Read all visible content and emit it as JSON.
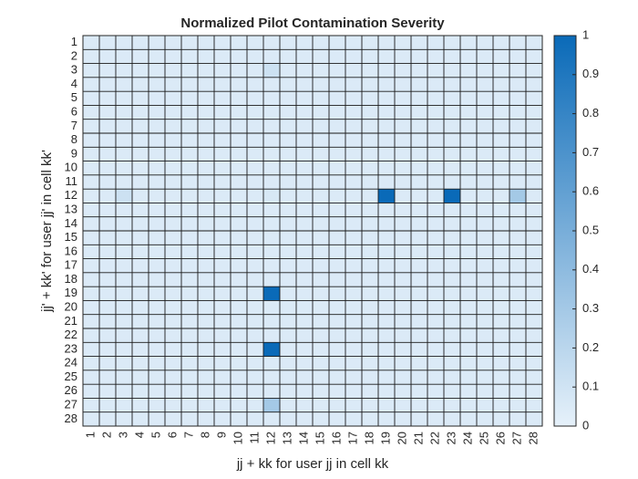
{
  "chart_data": {
    "type": "heatmap",
    "title": "Normalized Pilot Contamination Severity",
    "xlabel": "jj + kk for user jj in cell kk",
    "ylabel": "jj' + kk' for user jj' in cell kk'",
    "x_categories": [
      "1",
      "2",
      "3",
      "4",
      "5",
      "6",
      "7",
      "8",
      "9",
      "10",
      "11",
      "12",
      "13",
      "14",
      "15",
      "16",
      "17",
      "18",
      "19",
      "20",
      "21",
      "22",
      "23",
      "24",
      "25",
      "26",
      "27",
      "28"
    ],
    "y_categories": [
      "1",
      "2",
      "3",
      "4",
      "5",
      "6",
      "7",
      "8",
      "9",
      "10",
      "11",
      "12",
      "13",
      "14",
      "15",
      "16",
      "17",
      "18",
      "19",
      "20",
      "21",
      "22",
      "23",
      "24",
      "25",
      "26",
      "27",
      "28"
    ],
    "default_value": 0.05,
    "cells": [
      {
        "x": "12",
        "y": "3",
        "value": 0.12
      },
      {
        "x": "3",
        "y": "12",
        "value": 0.12
      },
      {
        "x": "12",
        "y": "12",
        "value": 0.07
      },
      {
        "x": "19",
        "y": "12",
        "value": 1.0
      },
      {
        "x": "23",
        "y": "12",
        "value": 1.0
      },
      {
        "x": "27",
        "y": "12",
        "value": 0.3
      },
      {
        "x": "12",
        "y": "19",
        "value": 1.0
      },
      {
        "x": "12",
        "y": "23",
        "value": 1.0
      },
      {
        "x": "12",
        "y": "27",
        "value": 0.3
      }
    ],
    "colorbar": {
      "range": [
        0,
        1
      ],
      "ticks": [
        "0",
        "0.1",
        "0.2",
        "0.3",
        "0.4",
        "0.5",
        "0.6",
        "0.7",
        "0.8",
        "0.9",
        "1"
      ],
      "low_color": "#e6f1fa",
      "high_color": "#0a6ab8"
    },
    "grid": true
  }
}
